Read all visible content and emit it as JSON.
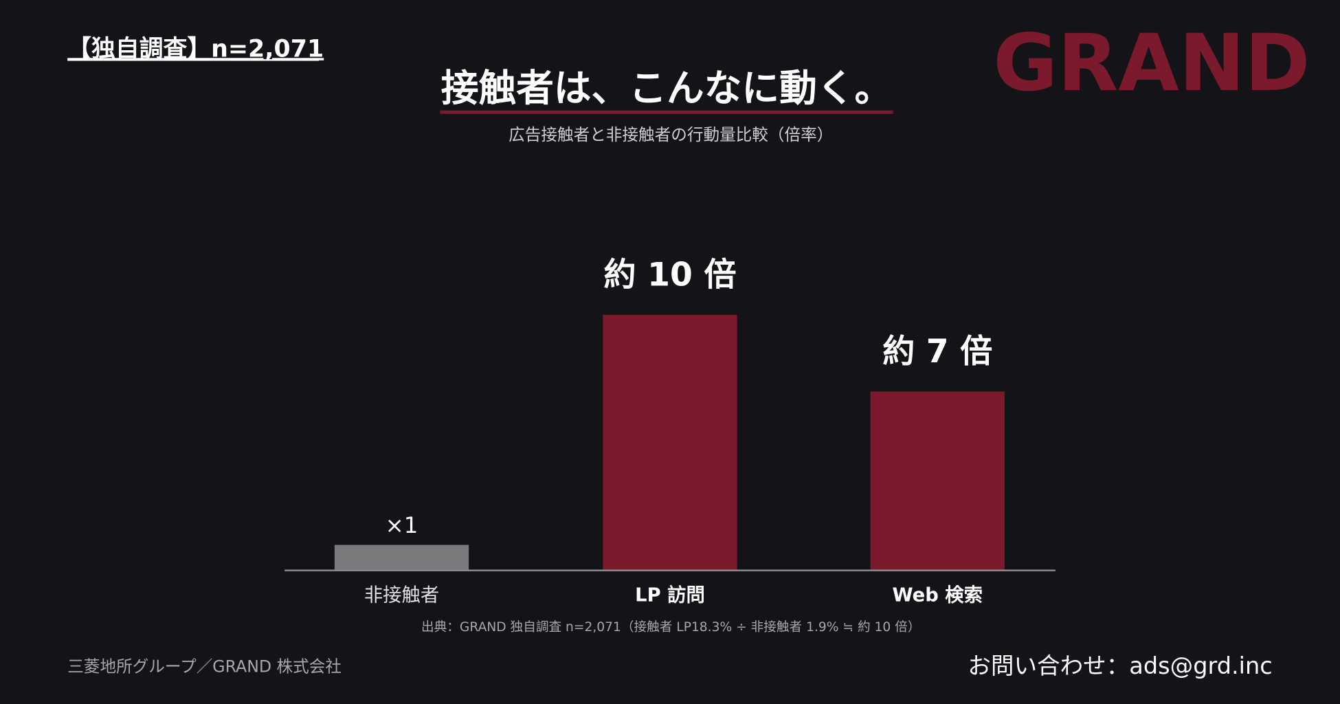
{
  "chart_data": {
    "type": "bar",
    "badge": "【独自調査】n=2,071",
    "logo": "GRAND",
    "title": "接触者は、こんなに動く。",
    "subtitle": "広告接触者と非接触者の行動量比較（倍率）",
    "categories": [
      "非接触者",
      "LP 訪問",
      "Web 検索"
    ],
    "values": [
      1,
      10,
      7
    ],
    "value_labels": [
      "×1",
      "約 10 倍",
      "約 7 倍"
    ],
    "colors": [
      "#7a7a7c",
      "#7b1a2c",
      "#7b1a2c"
    ],
    "ylim": [
      0,
      10
    ],
    "source": "出典：GRAND 独自調査 n=2,071（接触者 LP18.3% ÷ 非接触者 1.9% ≒ 約 10 倍）",
    "footer": "三菱地所グループ／GRAND 株式会社",
    "contact": "お問い合わせ：ads@grd.inc"
  }
}
